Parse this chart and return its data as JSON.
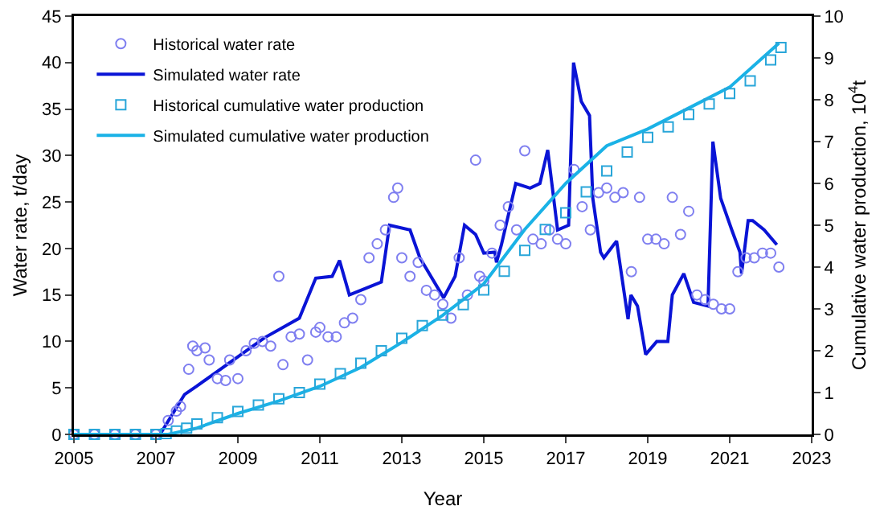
{
  "chart_data": {
    "type": "line",
    "xlabel": "Year",
    "ylabel": "Water rate, t/day",
    "y2label": "Cumulative water production, 10$^{4}$t",
    "xlim": [
      2005,
      2023
    ],
    "xticks": [
      2005,
      2007,
      2009,
      2011,
      2013,
      2015,
      2017,
      2019,
      2021,
      2023
    ],
    "ylim": [
      0,
      45
    ],
    "yticks": [
      0,
      5,
      10,
      15,
      20,
      25,
      30,
      35,
      40,
      45
    ],
    "y2lim": [
      0,
      10
    ],
    "y2ticks": [
      0,
      1,
      2,
      3,
      4,
      5,
      6,
      7,
      8,
      9,
      10
    ],
    "grid": false,
    "legend": "top left",
    "series": [
      {
        "name": "Historical water rate",
        "type": "scatter",
        "marker": "circle",
        "color": "#7f7ff0",
        "x": [
          2005,
          2005.5,
          2006,
          2006.5,
          2007,
          2007.3,
          2007.5,
          2007.6,
          2007.8,
          2007.9,
          2008.0,
          2008.2,
          2008.3,
          2008.5,
          2008.7,
          2008.8,
          2009,
          2009.2,
          2009.4,
          2009.6,
          2009.8,
          2010,
          2010.1,
          2010.3,
          2010.5,
          2010.7,
          2010.9,
          2011,
          2011.2,
          2011.4,
          2011.6,
          2011.8,
          2012.0,
          2012.2,
          2012.4,
          2012.6,
          2012.8,
          2012.9,
          2013.0,
          2013.2,
          2013.4,
          2013.6,
          2013.8,
          2014.0,
          2014.2,
          2014.4,
          2014.6,
          2014.8,
          2014.9,
          2015.0,
          2015.2,
          2015.4,
          2015.6,
          2015.8,
          2016.0,
          2016.2,
          2016.4,
          2016.6,
          2016.8,
          2017.0,
          2017.2,
          2017.4,
          2017.6,
          2017.8,
          2018.0,
          2018.2,
          2018.4,
          2018.6,
          2018.8,
          2019.0,
          2019.2,
          2019.4,
          2019.6,
          2019.8,
          2020.0,
          2020.2,
          2020.4,
          2020.6,
          2020.8,
          2021.0,
          2021.2,
          2021.4,
          2021.6,
          2021.8,
          2022.0,
          2022.2
        ],
        "values": [
          0,
          0,
          0,
          0,
          0,
          1.5,
          2.5,
          3,
          7,
          9.5,
          9,
          9.3,
          8,
          6,
          5.8,
          8,
          6,
          9,
          9.8,
          10,
          9.5,
          17,
          7.5,
          10.5,
          10.8,
          8,
          11,
          11.5,
          10.5,
          10.5,
          12,
          12.5,
          14.5,
          19,
          20.5,
          22,
          25.5,
          26.5,
          19,
          17,
          18.5,
          15.5,
          15,
          14,
          12.5,
          19,
          15,
          29.5,
          17,
          16.5,
          19.5,
          22.5,
          24.5,
          22,
          30.5,
          21,
          20.5,
          22,
          21,
          20.5,
          28.5,
          24.5,
          22,
          26,
          26.5,
          25.5,
          26,
          17.5,
          25.5,
          21,
          21,
          20.5,
          25.5,
          21.5,
          24,
          15,
          14.5,
          14,
          13.5,
          13.5,
          17.5,
          19,
          19,
          19.5,
          19.5,
          18
        ]
      },
      {
        "name": "Simulated water rate",
        "marker": "none",
        "color": "#0a14d6",
        "x": [
          2005,
          2007.1,
          2007.7,
          2008.0,
          2009.65,
          2010.5,
          2010.9,
          2011.3,
          2011.48,
          2011.72,
          2012.0,
          2012.5,
          2012.7,
          2013.2,
          2013.44,
          2014.02,
          2014.3,
          2014.53,
          2014.8,
          2015.0,
          2015.27,
          2015.31,
          2015.43,
          2015.78,
          2016.13,
          2016.37,
          2016.56,
          2016.8,
          2017.07,
          2017.19,
          2017.38,
          2017.58,
          2017.66,
          2017.85,
          2017.93,
          2018.24,
          2018.52,
          2018.59,
          2018.75,
          2018.95,
          2019.22,
          2019.49,
          2019.6,
          2019.88,
          2020.12,
          2020.47,
          2020.59,
          2020.78,
          2021.05,
          2021.25,
          2021.29,
          2021.45,
          2021.56,
          2021.84,
          2022.15
        ],
        "values": [
          0,
          0,
          4.3,
          5.2,
          10.4,
          12.5,
          16.8,
          17,
          18.7,
          15,
          15.5,
          16.4,
          22.5,
          22,
          19,
          14.7,
          17,
          22.5,
          21.5,
          19.5,
          19.6,
          18.5,
          20.4,
          27,
          26.5,
          27,
          30.6,
          22,
          22.5,
          40,
          35.8,
          34.3,
          25.4,
          19.6,
          19,
          20.8,
          12.4,
          15,
          13.8,
          8.6,
          10,
          10,
          15,
          17.3,
          14.2,
          13.8,
          31.5,
          25.4,
          22,
          19.6,
          17.3,
          23,
          23,
          22,
          20.4
        ]
      },
      {
        "name": "Historical cumulative water production",
        "type": "scatter",
        "marker": "square",
        "axis": "y2",
        "color": "#29a6d9",
        "x": [
          2005,
          2005.5,
          2006,
          2006.5,
          2007,
          2007.25,
          2007.5,
          2007.75,
          2008,
          2008.5,
          2009,
          2009.5,
          2010,
          2010.5,
          2011,
          2011.5,
          2012,
          2012.5,
          2013,
          2013.5,
          2014,
          2014.5,
          2015,
          2015.5,
          2016,
          2016.5,
          2017,
          2017.5,
          2018,
          2018.5,
          2019,
          2019.5,
          2020,
          2020.5,
          2021,
          2021.5,
          2022,
          2022.25
        ],
        "values": [
          0,
          0,
          0,
          0,
          0,
          0.02,
          0.08,
          0.15,
          0.25,
          0.4,
          0.55,
          0.7,
          0.85,
          1.0,
          1.2,
          1.45,
          1.7,
          2.0,
          2.3,
          2.6,
          2.85,
          3.1,
          3.45,
          3.9,
          4.4,
          4.9,
          5.3,
          5.8,
          6.3,
          6.75,
          7.1,
          7.35,
          7.65,
          7.9,
          8.15,
          8.45,
          8.95,
          9.25
        ]
      },
      {
        "name": "Simulated cumulative water production",
        "marker": "none",
        "axis": "y2",
        "color": "#1ab2e6",
        "x": [
          2005,
          2007.3,
          2008,
          2009,
          2010,
          2011,
          2012,
          2013,
          2014,
          2015,
          2016,
          2017,
          2018,
          2019,
          2020,
          2021,
          2022.2
        ],
        "values": [
          0,
          0,
          0.15,
          0.5,
          0.8,
          1.15,
          1.6,
          2.2,
          2.85,
          3.6,
          4.9,
          6.0,
          6.9,
          7.3,
          7.8,
          8.3,
          9.35
        ]
      }
    ]
  }
}
